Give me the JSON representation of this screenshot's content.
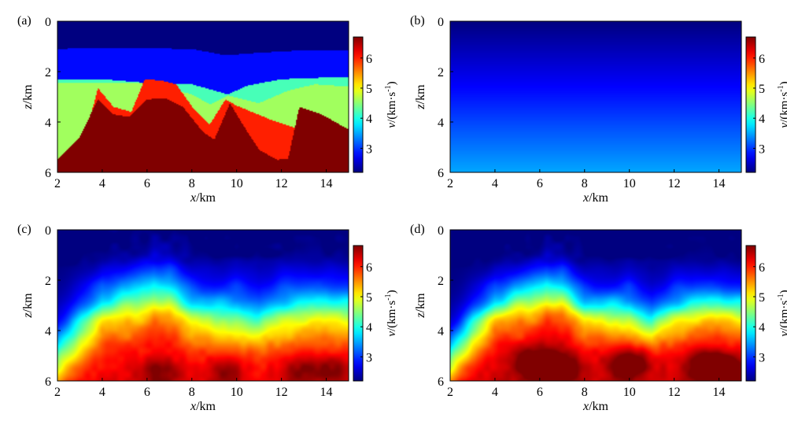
{
  "chart_data": [
    {
      "type": "heatmap",
      "panel_label": "(a)",
      "xlabel": "x/km",
      "ylabel": "z/km",
      "x_ticks": [
        "2",
        "4",
        "6",
        "8",
        "10",
        "12",
        "14"
      ],
      "y_ticks": [
        "0",
        "2",
        "4",
        "6"
      ],
      "xlim": [
        2,
        15
      ],
      "ylim": [
        0,
        6
      ],
      "y_inverted": true,
      "colorbar": {
        "label": "v/(km·s⁻¹)",
        "range": [
          2.2,
          6.7
        ],
        "ticks": [
          "3",
          "4",
          "5",
          "6"
        ]
      },
      "model": {
        "kind": "layered",
        "layers": [
          {
            "v": 2.2,
            "interface_depth_km": [
              [
                2,
                0
              ],
              [
                15,
                0
              ]
            ]
          },
          {
            "v": 2.8,
            "interface_depth_km": [
              [
                2,
                1.1
              ],
              [
                4,
                1.05
              ],
              [
                8,
                1.1
              ],
              [
                9.5,
                1.35
              ],
              [
                11,
                1.25
              ],
              [
                13,
                1.15
              ],
              [
                15,
                1.15
              ]
            ]
          },
          {
            "v": 4.2,
            "interface_depth_km": [
              [
                2,
                2.3
              ],
              [
                4,
                2.3
              ],
              [
                6,
                2.45
              ],
              [
                8,
                2.5
              ],
              [
                9,
                2.75
              ],
              [
                9.6,
                2.9
              ],
              [
                10.5,
                2.55
              ],
              [
                12,
                2.3
              ],
              [
                15,
                2.2
              ]
            ]
          },
          {
            "v": 4.6,
            "interface_depth_km": [
              [
                2,
                2.45
              ],
              [
                4,
                2.45
              ],
              [
                6,
                2.45
              ],
              [
                8,
                2.9
              ],
              [
                8.8,
                3.3
              ],
              [
                9.6,
                2.95
              ],
              [
                11,
                3.25
              ],
              [
                12.3,
                2.75
              ],
              [
                13.5,
                2.5
              ],
              [
                15,
                2.6
              ]
            ]
          },
          {
            "v": 5.6,
            "interface_depth_km": [
              [
                2,
                9
              ],
              [
                9.2,
                9
              ],
              [
                9.8,
                3.85
              ],
              [
                10.5,
                4
              ],
              [
                11.5,
                4.3
              ],
              [
                12.8,
                4.45
              ],
              [
                13.5,
                4.3
              ],
              [
                15,
                9
              ]
            ]
          },
          {
            "v": 6.0,
            "interface_depth_km": [
              [
                2,
                9
              ],
              [
                3.8,
                2.65
              ],
              [
                4.5,
                3.4
              ],
              [
                5.3,
                3.6
              ],
              [
                5.9,
                2.3
              ],
              [
                6.6,
                2.35
              ],
              [
                7.3,
                2.5
              ],
              [
                8.1,
                3.5
              ],
              [
                8.8,
                4.1
              ],
              [
                9.5,
                3.1
              ],
              [
                10,
                3.35
              ],
              [
                11.5,
                3.9
              ],
              [
                12.5,
                4.2
              ],
              [
                13.2,
                4.3
              ],
              [
                15,
                9
              ]
            ]
          },
          {
            "v": 6.7,
            "interface_depth_km": [
              [
                2,
                5.5
              ],
              [
                3,
                4.6
              ],
              [
                3.8,
                3.1
              ],
              [
                4.5,
                3.7
              ],
              [
                5.2,
                3.8
              ],
              [
                6,
                3.1
              ],
              [
                6.8,
                3.05
              ],
              [
                7.6,
                3.4
              ],
              [
                8.5,
                4.4
              ],
              [
                9.0,
                4.7
              ],
              [
                9.7,
                3.25
              ],
              [
                10.2,
                4
              ],
              [
                11,
                5.1
              ],
              [
                11.8,
                5.5
              ],
              [
                12.3,
                5.45
              ],
              [
                12.8,
                3.4
              ],
              [
                13.8,
                3.7
              ],
              [
                15,
                4.3
              ]
            ]
          }
        ]
      }
    },
    {
      "type": "heatmap",
      "panel_label": "(b)",
      "xlabel": "x/km",
      "ylabel": "z/km",
      "x_ticks": [
        "2",
        "4",
        "6",
        "8",
        "10",
        "12",
        "14"
      ],
      "y_ticks": [
        "0",
        "2",
        "4",
        "6"
      ],
      "xlim": [
        2,
        15
      ],
      "ylim": [
        0,
        6
      ],
      "y_inverted": true,
      "colorbar": {
        "label": "v/(km·s⁻¹)",
        "range": [
          2.2,
          6.7
        ],
        "ticks": [
          "3",
          "4",
          "5",
          "6"
        ]
      },
      "model": {
        "kind": "linear_gradient",
        "v_top": 2.2,
        "v_bottom": 3.5
      }
    },
    {
      "type": "heatmap",
      "panel_label": "(c)",
      "xlabel": "x/km",
      "ylabel": "z/km",
      "x_ticks": [
        "2",
        "4",
        "6",
        "8",
        "10",
        "12",
        "14"
      ],
      "y_ticks": [
        "0",
        "2",
        "4",
        "6"
      ],
      "xlim": [
        2,
        15
      ],
      "ylim": [
        0,
        6
      ],
      "y_inverted": true,
      "colorbar": {
        "label": "v/(km·s⁻¹)",
        "range": [
          2.2,
          6.7
        ],
        "ticks": [
          "3",
          "4",
          "5",
          "6"
        ]
      },
      "model": {
        "kind": "smooth",
        "v_top": 2.2,
        "v_max": 6.3,
        "transition_width_km": 0.75,
        "mid_depth_km": [
          [
            2,
            5.0
          ],
          [
            3,
            4.0
          ],
          [
            4,
            3.1
          ],
          [
            5,
            2.9
          ],
          [
            6.3,
            2.45
          ],
          [
            7,
            2.6
          ],
          [
            8,
            3.2
          ],
          [
            9,
            3.4
          ],
          [
            10,
            3.4
          ],
          [
            11,
            3.6
          ],
          [
            12,
            3.3
          ],
          [
            13,
            3.15
          ],
          [
            14,
            3.1
          ],
          [
            15,
            3.2
          ]
        ],
        "deep_high_centers": [
          [
            6.5,
            5.7
          ],
          [
            9.5,
            5.6
          ],
          [
            12.8,
            5.6
          ],
          [
            14.3,
            5.5
          ]
        ],
        "deep_high_amount": 0.5
      }
    },
    {
      "type": "heatmap",
      "panel_label": "(d)",
      "xlabel": "x/km",
      "ylabel": "z/km",
      "x_ticks": [
        "2",
        "4",
        "6",
        "8",
        "10",
        "12",
        "14"
      ],
      "y_ticks": [
        "0",
        "2",
        "4",
        "6"
      ],
      "xlim": [
        2,
        15
      ],
      "ylim": [
        0,
        6
      ],
      "y_inverted": true,
      "colorbar": {
        "label": "v/(km·s⁻¹)",
        "range": [
          2.2,
          6.7
        ],
        "ticks": [
          "3",
          "4",
          "5",
          "6"
        ]
      },
      "model": {
        "kind": "smooth",
        "v_top": 2.2,
        "v_max": 6.4,
        "transition_width_km": 0.65,
        "mid_depth_km": [
          [
            2,
            5.1
          ],
          [
            3,
            4.0
          ],
          [
            4,
            3.1
          ],
          [
            5,
            2.85
          ],
          [
            6.3,
            2.4
          ],
          [
            7,
            2.55
          ],
          [
            8,
            3.2
          ],
          [
            9,
            3.3
          ],
          [
            10,
            3.3
          ],
          [
            11,
            3.7
          ],
          [
            12,
            3.3
          ],
          [
            13,
            3.1
          ],
          [
            14,
            3.05
          ],
          [
            15,
            3.2
          ]
        ],
        "deep_high_centers": [
          [
            5.8,
            5.3
          ],
          [
            6.8,
            5.5
          ],
          [
            10,
            5.3
          ],
          [
            13.5,
            5.4
          ],
          [
            14.3,
            5.6
          ]
        ],
        "deep_high_amount": 0.9
      }
    }
  ]
}
